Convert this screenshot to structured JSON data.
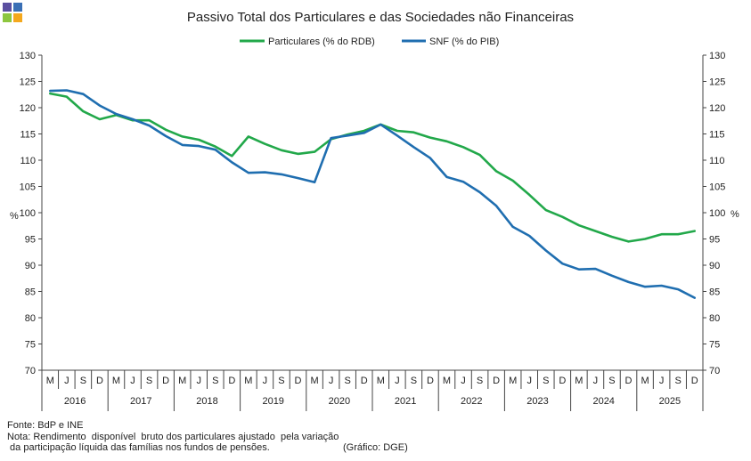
{
  "logo": {
    "colors": [
      "#5b4fa0",
      "#3a6fb5",
      "#8dc63f",
      "#f4a81d"
    ]
  },
  "notes": {
    "source": "Fonte: BdP e INE",
    "note_line1": "Nota: Rendimento  disponível  bruto dos particulares ajustado  pela variação",
    "note_line2": " da participação líquida das famílias nos fundos de pensões.",
    "credit": "(Gráfico: DGE)"
  },
  "chart_data": {
    "type": "line",
    "title": "Passivo Total dos Particulares e das Sociedades não Financeiras",
    "ylabel_left": "%",
    "ylabel_right": "%",
    "ylim": [
      70,
      130
    ],
    "yticks": [
      70,
      75,
      80,
      85,
      90,
      95,
      100,
      105,
      110,
      115,
      120,
      125,
      130
    ],
    "grid": false,
    "legend_position": "top-center",
    "month_labels": [
      "M",
      "J",
      "S",
      "D",
      "M",
      "J",
      "S",
      "D",
      "M",
      "J",
      "S",
      "D",
      "M",
      "J",
      "S",
      "D",
      "M",
      "J",
      "S",
      "D",
      "M",
      "J",
      "S",
      "D",
      "M",
      "J",
      "S",
      "D",
      "M",
      "J",
      "S",
      "D",
      "M",
      "J",
      "S",
      "D",
      "M",
      "J",
      "S",
      "D"
    ],
    "years": [
      "2016",
      "2017",
      "2018",
      "2019",
      "2020",
      "2021",
      "2022",
      "2023",
      "2024",
      "2025"
    ],
    "series": [
      {
        "name": "Particulares (% do RDB)",
        "color": "#22a84a",
        "values": [
          122.7,
          122.1,
          119.3,
          117.8,
          118.6,
          117.6,
          117.6,
          115.8,
          114.5,
          113.9,
          112.6,
          110.8,
          114.5,
          113.1,
          111.9,
          111.2,
          111.6,
          114.0,
          114.9,
          115.6,
          116.8,
          115.6,
          115.3,
          114.3,
          113.6,
          112.5,
          111.0,
          107.9,
          106.1,
          103.4,
          100.5,
          99.2,
          97.6,
          96.5,
          95.4,
          94.5,
          95.0,
          95.9,
          95.9,
          96.5
        ]
      },
      {
        "name": "SNF (% do PIB)",
        "color": "#1f6eb0",
        "values": [
          123.2,
          123.3,
          122.6,
          120.4,
          118.8,
          117.8,
          116.6,
          114.6,
          112.9,
          112.7,
          112.0,
          109.6,
          107.6,
          107.7,
          107.3,
          106.6,
          105.8,
          114.2,
          114.7,
          115.2,
          116.8,
          114.7,
          112.5,
          110.4,
          106.8,
          105.9,
          103.9,
          101.3,
          97.3,
          95.6,
          92.8,
          90.3,
          89.2,
          89.3,
          88.0,
          86.8,
          85.9,
          86.1,
          85.4,
          83.8
        ]
      }
    ]
  }
}
